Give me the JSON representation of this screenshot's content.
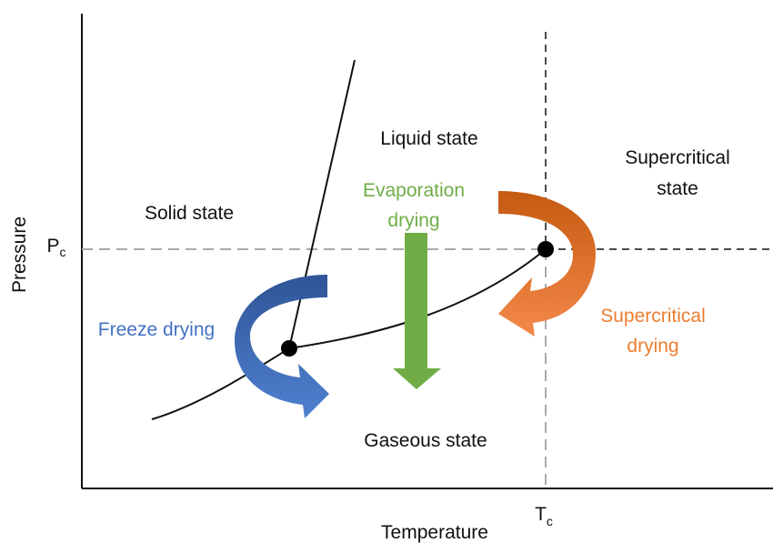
{
  "axes": {
    "y_label": "Pressure",
    "x_label": "Temperature",
    "pc": {
      "main": "P",
      "sub": "c"
    },
    "tc": {
      "main": "T",
      "sub": "c"
    }
  },
  "regions": {
    "solid": "Solid state",
    "liquid": "Liquid state",
    "supercritical": [
      "Supercritical",
      "state"
    ],
    "gaseous": "Gaseous state"
  },
  "processes": {
    "freeze": "Freeze drying",
    "evaporation": [
      "Evaporation",
      "drying"
    ],
    "supercritical": [
      "Supercritical",
      "drying"
    ]
  }
}
